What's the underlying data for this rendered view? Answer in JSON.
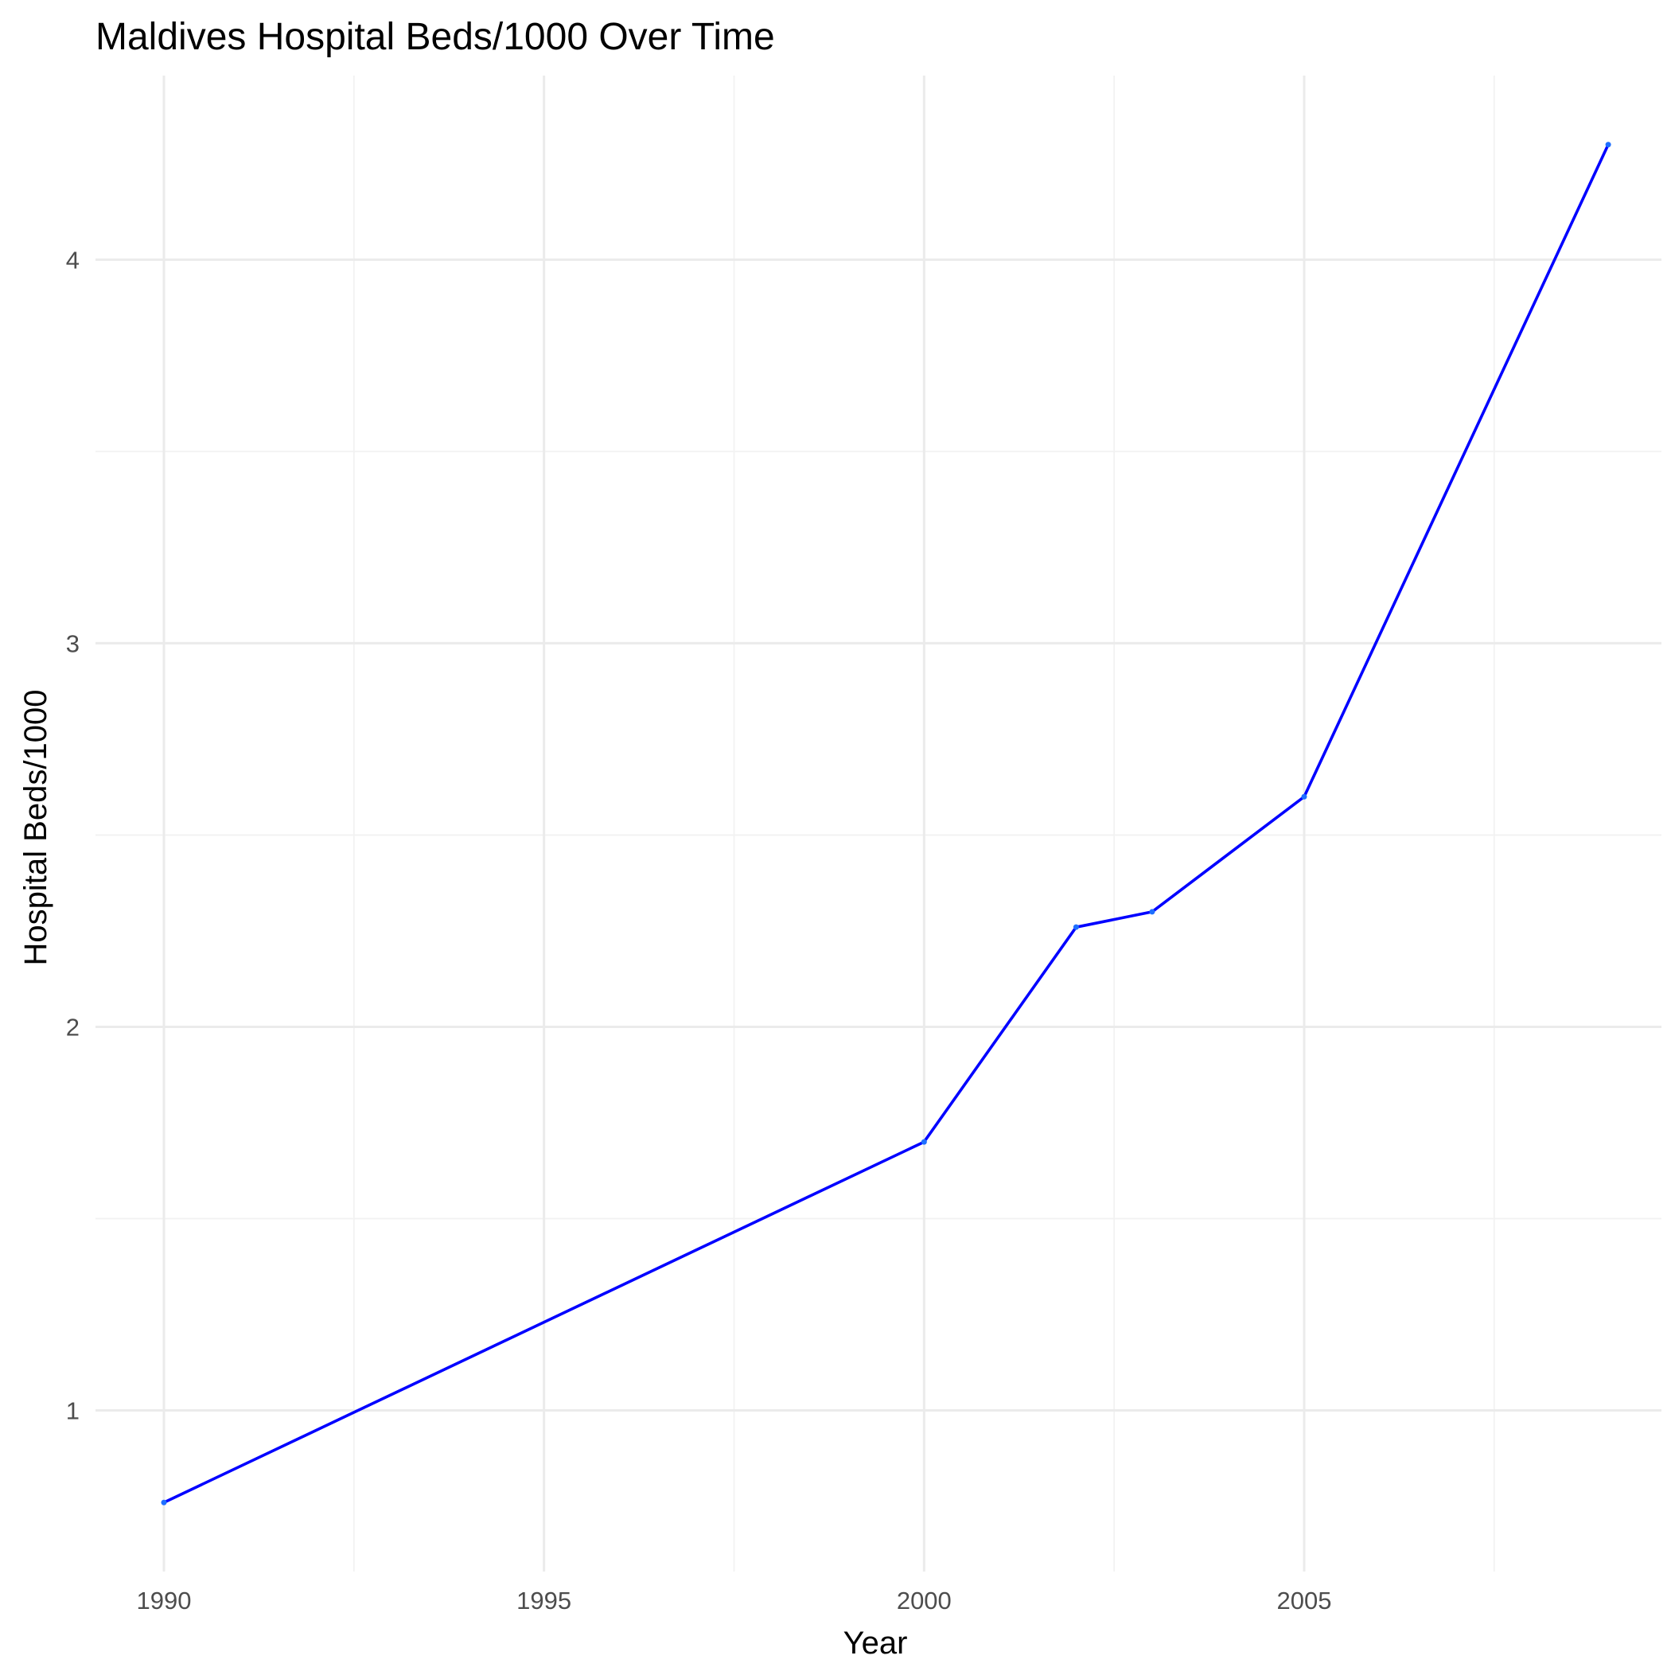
{
  "chart_data": {
    "type": "line",
    "title": "Maldives Hospital Beds/1000 Over Time",
    "xlabel": "Year",
    "ylabel": "Hospital Beds/1000",
    "xlim": [
      1989.1,
      2009.7
    ],
    "ylim": [
      0.58,
      4.48
    ],
    "x_ticks": [
      1990,
      1995,
      2000,
      2005
    ],
    "x_tick_labels": [
      "1990",
      "1995",
      "2000",
      "2005"
    ],
    "x_minor_ticks": [
      1992.5,
      1997.5,
      2002.5,
      2007.5
    ],
    "y_ticks": [
      1,
      2,
      3,
      4
    ],
    "y_tick_labels": [
      "1",
      "2",
      "3",
      "4"
    ],
    "y_minor_ticks": [
      1.5,
      2.5,
      3.5
    ],
    "grid": true,
    "legend": "none",
    "series": [
      {
        "color": "#0000ff",
        "point_color": "#1e6fff",
        "x": [
          1990,
          2000,
          2002,
          2003,
          2005,
          2009
        ],
        "y": [
          0.76,
          1.7,
          2.26,
          2.3,
          2.6,
          4.3
        ]
      }
    ]
  }
}
